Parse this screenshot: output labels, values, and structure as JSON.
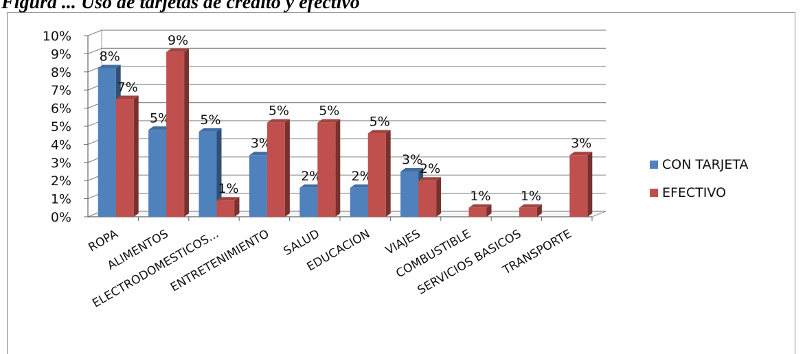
{
  "caption": "Figura ... Uso de tarjetas de crédito y efectivo",
  "chart_data": {
    "type": "bar",
    "categories": [
      "ROPA",
      "ALIMENTOS",
      "ELECTRODOMESTICOS...",
      "ENTRETENIMIENTO",
      "SALUD",
      "EDUCACION",
      "VIAJES",
      "COMBUSTIBLE",
      "SERVICIOS BASICOS",
      "TRANSPORTE"
    ],
    "series": [
      {
        "name": "CON TARJETA",
        "color": "#4f81bd",
        "values": [
          8.2,
          4.8,
          4.7,
          3.4,
          1.6,
          1.6,
          2.5,
          0,
          0,
          0
        ],
        "labels": [
          "8%",
          "5%",
          "5%",
          "3%",
          "2%",
          "2%",
          "3%",
          "",
          "",
          ""
        ]
      },
      {
        "name": "EFECTIVO",
        "color": "#c0504d",
        "values": [
          6.5,
          9.1,
          0.9,
          5.2,
          5.2,
          4.6,
          2.0,
          0.5,
          0.5,
          3.4
        ],
        "labels": [
          "7%",
          "9%",
          "1%",
          "5%",
          "5%",
          "5%",
          "2%",
          "1%",
          "1%",
          "3%"
        ]
      }
    ],
    "yticks": [
      "0%",
      "1%",
      "2%",
      "3%",
      "4%",
      "5%",
      "6%",
      "7%",
      "8%",
      "9%",
      "10%"
    ],
    "ylim": [
      0,
      10
    ],
    "grid": true,
    "legend": "right"
  }
}
